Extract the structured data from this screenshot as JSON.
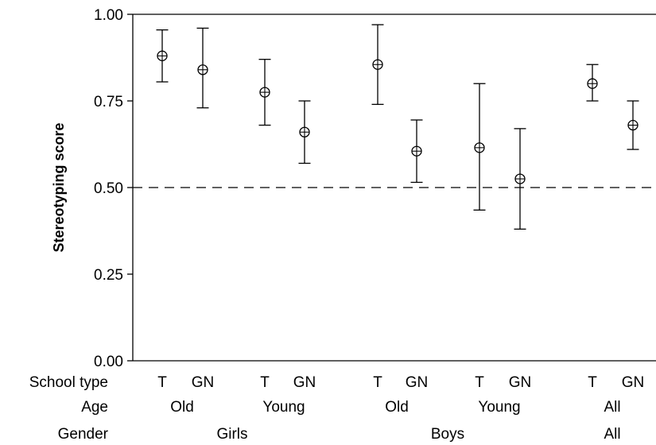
{
  "chart_data": {
    "type": "scatter",
    "subtype": "point-with-error-bars",
    "title": "",
    "xlabel": "",
    "ylabel": "Stereotyping score",
    "ylim": [
      0.0,
      1.0
    ],
    "yticks": [
      "0.00",
      "0.25",
      "0.50",
      "0.75",
      "1.00"
    ],
    "reference_line": {
      "y": 0.5,
      "style": "dashed"
    },
    "grid": false,
    "legend": "none",
    "row_labels": {
      "school_type": "School type",
      "age": "Age",
      "gender": "Gender"
    },
    "points": [
      {
        "school_type": "T",
        "age": "Old",
        "gender": "Girls",
        "value": 0.88,
        "lower": 0.805,
        "upper": 0.955
      },
      {
        "school_type": "GN",
        "age": "Old",
        "gender": "Girls",
        "value": 0.84,
        "lower": 0.73,
        "upper": 0.96
      },
      {
        "school_type": "T",
        "age": "Young",
        "gender": "Girls",
        "value": 0.775,
        "lower": 0.68,
        "upper": 0.87
      },
      {
        "school_type": "GN",
        "age": "Young",
        "gender": "Girls",
        "value": 0.66,
        "lower": 0.57,
        "upper": 0.75
      },
      {
        "school_type": "T",
        "age": "Old",
        "gender": "Boys",
        "value": 0.855,
        "lower": 0.74,
        "upper": 0.97
      },
      {
        "school_type": "GN",
        "age": "Old",
        "gender": "Boys",
        "value": 0.605,
        "lower": 0.515,
        "upper": 0.695
      },
      {
        "school_type": "T",
        "age": "Young",
        "gender": "Boys",
        "value": 0.615,
        "lower": 0.435,
        "upper": 0.8
      },
      {
        "school_type": "GN",
        "age": "Young",
        "gender": "Boys",
        "value": 0.525,
        "lower": 0.38,
        "upper": 0.67
      },
      {
        "school_type": "T",
        "age": "All",
        "gender": "All",
        "value": 0.8,
        "lower": 0.75,
        "upper": 0.855
      },
      {
        "school_type": "GN",
        "age": "All",
        "gender": "All",
        "value": 0.68,
        "lower": 0.61,
        "upper": 0.75
      }
    ],
    "age_groups": [
      "Old",
      "Young",
      "Old",
      "Young",
      "All"
    ],
    "gender_groups": [
      "Girls",
      "Boys",
      "All"
    ]
  }
}
